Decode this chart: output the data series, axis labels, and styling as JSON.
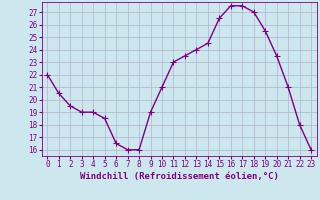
{
  "x": [
    0,
    1,
    2,
    3,
    4,
    5,
    6,
    7,
    8,
    9,
    10,
    11,
    12,
    13,
    14,
    15,
    16,
    17,
    18,
    19,
    20,
    21,
    22,
    23
  ],
  "y": [
    22,
    20.5,
    19.5,
    19,
    19,
    18.5,
    16.5,
    16,
    16,
    19,
    21,
    23,
    23.5,
    24,
    24.5,
    26.5,
    27.5,
    27.5,
    27,
    25.5,
    23.5,
    21,
    18,
    16
  ],
  "line_color": "#800080",
  "marker_color": "#800080",
  "bg_color": "#cce8ee",
  "grid_color": "#b0b0cc",
  "xlabel": "Windchill (Refroidissement éolien,°C)",
  "xlim": [
    -0.5,
    23.5
  ],
  "ylim": [
    15.5,
    27.8
  ],
  "yticks": [
    16,
    17,
    18,
    19,
    20,
    21,
    22,
    23,
    24,
    25,
    26,
    27
  ],
  "xticks": [
    0,
    1,
    2,
    3,
    4,
    5,
    6,
    7,
    8,
    9,
    10,
    11,
    12,
    13,
    14,
    15,
    16,
    17,
    18,
    19,
    20,
    21,
    22,
    23
  ],
  "tick_fontsize": 5.5,
  "label_fontsize": 6.5,
  "marker_size": 4,
  "line_width": 1.0
}
